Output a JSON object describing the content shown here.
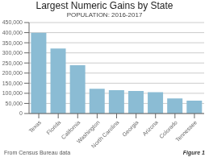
{
  "chart_data": {
    "type": "bar",
    "title": "Largest Numeric Gains by State",
    "subtitle": "POPULATION: 2016-2017",
    "categories": [
      "Texas",
      "Florida",
      "California",
      "Washington",
      "North Carolina",
      "Georgia",
      "Arizona",
      "Colorado",
      "Tennessee"
    ],
    "values": [
      399000,
      322000,
      239000,
      122000,
      115000,
      112000,
      106000,
      75000,
      64000
    ],
    "color": "#8bbcd4",
    "ylim": [
      0,
      450000
    ],
    "yticks": [
      0,
      {
        "value": 50000,
        "label": "50,000"
      },
      {
        "value": 100000,
        "label": "100,000"
      },
      {
        "value": 150000,
        "label": "150,000"
      },
      {
        "value": 200000,
        "label": "200,000"
      },
      {
        "value": 250000,
        "label": "250,000"
      },
      {
        "value": 300000,
        "label": "300,000"
      },
      {
        "value": 350000,
        "label": "350,000"
      },
      {
        "value": 400000,
        "label": "400,000"
      },
      {
        "value": 450000,
        "label": "450,000"
      }
    ],
    "grid": true,
    "annotations": [
      "From Census Bureau data",
      "Figure 1"
    ]
  }
}
